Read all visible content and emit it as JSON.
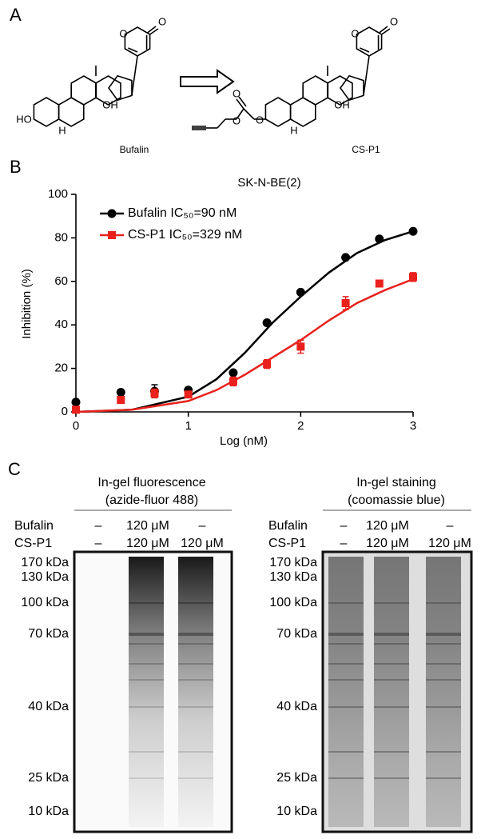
{
  "panel_a": {
    "label": "A",
    "compounds": [
      {
        "name": "Bufalin",
        "atoms": [
          "O",
          "O",
          "HO",
          "H",
          "OH"
        ]
      },
      {
        "name": "CS-P1",
        "atoms": [
          "O",
          "O",
          "O",
          "O",
          "H",
          "OH"
        ]
      }
    ]
  },
  "chart_data": {
    "type": "line",
    "panel_label": "B",
    "title": "SK-N-BE(2)",
    "xlabel": "Log (nM)",
    "ylabel": "Inhibition (%)",
    "x": [
      0,
      0.4,
      0.7,
      1,
      1.4,
      1.7,
      2,
      2.4,
      2.7,
      3
    ],
    "fit_x": [
      0,
      0.5,
      1,
      1.25,
      1.5,
      1.75,
      2,
      2.25,
      2.5,
      2.75,
      3
    ],
    "series": [
      {
        "name": "Bufalin IC₅₀=90 nM",
        "color": "#000000",
        "marker": "circle",
        "values": [
          4.5,
          9,
          9.5,
          10,
          18,
          41,
          55,
          71,
          79.5,
          83
        ],
        "errors": [
          null,
          null,
          3,
          null,
          null,
          null,
          null,
          null,
          null,
          null
        ],
        "fit_values": [
          0,
          1,
          7,
          15,
          27,
          41,
          53,
          64,
          73,
          79,
          83
        ]
      },
      {
        "name": "CS-P1 IC₅₀=329 nM",
        "color": "#e8211c",
        "marker": "square",
        "values": [
          1,
          5.5,
          8.5,
          8,
          14,
          22,
          30,
          50,
          59,
          62
        ],
        "errors": [
          null,
          null,
          2,
          null,
          2,
          2,
          3,
          3,
          1.5,
          2
        ],
        "fit_values": [
          0,
          1,
          5,
          10,
          17,
          25,
          33,
          42,
          50,
          56,
          61
        ]
      }
    ],
    "xlim": [
      0,
      3
    ],
    "ylim": [
      0,
      100
    ],
    "xticks": [
      0,
      1,
      2,
      3
    ],
    "yticks": [
      0,
      20,
      40,
      60,
      80,
      100
    ],
    "legend": "upper left"
  },
  "panel_c": {
    "label": "C",
    "gels": [
      {
        "title": "In-gel fluorescence",
        "subtitle": "(azide-fluor 488)",
        "row_labels": [
          "Bufalin",
          "CS-P1"
        ],
        "lanes": [
          [
            "–",
            "–"
          ],
          [
            "120 μM",
            "120 μM"
          ],
          [
            "–",
            "120 μM"
          ]
        ],
        "markers": [
          "170 kDa",
          "130 kDa",
          "100 kDa",
          "70 kDa",
          "40 kDa",
          "25 kDa",
          "10 kDa"
        ]
      },
      {
        "title": "In-gel staining",
        "subtitle": "(coomassie blue)",
        "row_labels": [
          "Bufalin",
          "CS-P1"
        ],
        "lanes": [
          [
            "–",
            "–"
          ],
          [
            "120 μM",
            "120 μM"
          ],
          [
            "–",
            "120 μM"
          ]
        ],
        "markers": [
          "170 kDa",
          "130 kDa",
          "100 kDa",
          "70 kDa",
          "40 kDa",
          "25 kDa",
          "10 kDa"
        ]
      }
    ]
  }
}
